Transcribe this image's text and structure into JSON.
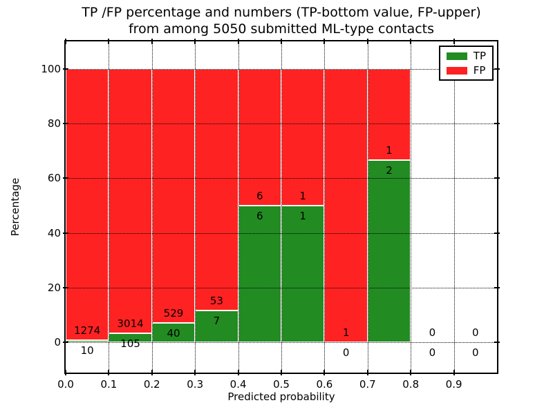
{
  "title": {
    "line1": "TP /FP percentage and numbers (TP-bottom value, FP-upper)",
    "line2": "from among 5050 submitted ML-type contacts"
  },
  "axes": {
    "xlabel": "Predicted probability",
    "ylabel": "Percentage",
    "xticklabels": [
      "0.0",
      "0.1",
      "0.2",
      "0.3",
      "0.4",
      "0.5",
      "0.6",
      "0.7",
      "0.8",
      "0.9"
    ],
    "yticklabels": [
      "0",
      "20",
      "40",
      "60",
      "80",
      "100"
    ],
    "ytick_values": [
      0,
      20,
      40,
      60,
      80,
      100
    ],
    "xlim": [
      0.0,
      1.0
    ],
    "ylim": [
      -11,
      110
    ],
    "grid": "dotted, drawn above bars"
  },
  "legend": {
    "position": "upper right",
    "items": [
      {
        "label": "TP",
        "color": "#228b22"
      },
      {
        "label": "FP",
        "color": "#ff2222"
      }
    ]
  },
  "colors": {
    "tp": "#228b22",
    "fp": "#ff2222",
    "grid": "#000000",
    "text": "#000000",
    "bar_edge": "#ffffff"
  },
  "chart_data": {
    "type": "bar",
    "stacked": true,
    "normalization": "each non-empty bin stacked to 100%",
    "title": "TP /FP percentage and numbers (TP-bottom value, FP-upper) from among 5050 submitted ML-type contacts",
    "xlabel": "Predicted probability",
    "ylabel": "Percentage",
    "total_contacts": 5050,
    "bin_edges": [
      0.0,
      0.1,
      0.2,
      0.3,
      0.4,
      0.5,
      0.6,
      0.7,
      0.8,
      0.9,
      1.0
    ],
    "categories": [
      "0.0-0.1",
      "0.1-0.2",
      "0.2-0.3",
      "0.3-0.4",
      "0.4-0.5",
      "0.5-0.6",
      "0.6-0.7",
      "0.7-0.8",
      "0.8-0.9",
      "0.9-1.0"
    ],
    "series": [
      {
        "name": "TP",
        "color": "#228b22",
        "counts": [
          10,
          105,
          40,
          7,
          6,
          1,
          0,
          2,
          0,
          0
        ]
      },
      {
        "name": "FP",
        "color": "#ff2222",
        "counts": [
          1274,
          3014,
          529,
          53,
          6,
          1,
          1,
          1,
          0,
          0
        ]
      }
    ],
    "tp_percent_of_bin": [
      0.78,
      3.37,
      7.03,
      11.67,
      50.0,
      50.0,
      0.0,
      66.67,
      null,
      null
    ],
    "xlim": [
      0.0,
      1.0
    ],
    "ylim": [
      -11,
      110
    ],
    "legend_position": "upper right"
  }
}
